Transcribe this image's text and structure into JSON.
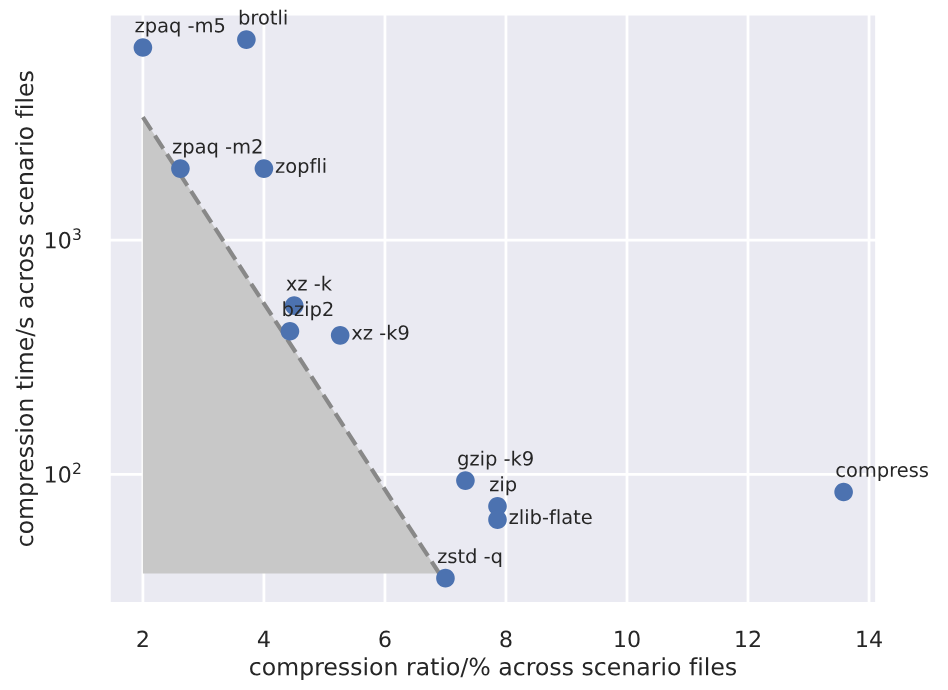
{
  "chart_data": {
    "type": "scatter",
    "xlabel": "compression ratio/% across scenario files",
    "ylabel": "compression time/s across scenario files",
    "xlim": [
      1.44,
      14.13
    ],
    "xticks": [
      2,
      4,
      6,
      8,
      10,
      12,
      14
    ],
    "ylim": [
      28,
      9250
    ],
    "yticks": [
      {
        "value": 100,
        "label": "10$^{2}$"
      },
      {
        "value": 1000,
        "label": "10$^{3}$"
      }
    ],
    "log": "y",
    "grid": true,
    "series": [
      {
        "type": "area",
        "color": "#c8c8c8",
        "line_style": "dashed",
        "x": [
          2,
          6.9
        ],
        "values": [
          3350,
          37.7
        ]
      },
      {
        "marker": "circle",
        "color": "#4c72b0",
        "x": [
          2.0,
          3.71,
          2.62,
          4.0,
          4.5,
          4.43,
          5.26,
          7.33,
          7.86,
          7.86,
          7.0,
          13.58
        ],
        "values": [
          6640,
          7180,
          2020,
          2020,
          525,
          408,
          392,
          94,
          73,
          64,
          36,
          84
        ]
      }
    ],
    "annotations": [
      {
        "text": "zpaq -m5",
        "x": 2.0,
        "y": 6640
      },
      {
        "text": "brotli",
        "x": 3.71,
        "y": 7180
      },
      {
        "text": "zpaq -m2",
        "x": 2.62,
        "y": 2020
      },
      {
        "text": "zopfli",
        "x": 4.0,
        "y": 2020
      },
      {
        "text": "xz -k",
        "x": 4.5,
        "y": 525
      },
      {
        "text": "bzip2",
        "x": 4.43,
        "y": 408
      },
      {
        "text": "xz -k9",
        "x": 5.26,
        "y": 392
      },
      {
        "text": "gzip -k9",
        "x": 7.33,
        "y": 94
      },
      {
        "text": "zip",
        "x": 7.86,
        "y": 73
      },
      {
        "text": "zlib-flate",
        "x": 7.86,
        "y": 64
      },
      {
        "text": "zstd -q",
        "x": 7.0,
        "y": 36
      },
      {
        "text": "compress",
        "x": 13.58,
        "y": 84
      }
    ]
  }
}
